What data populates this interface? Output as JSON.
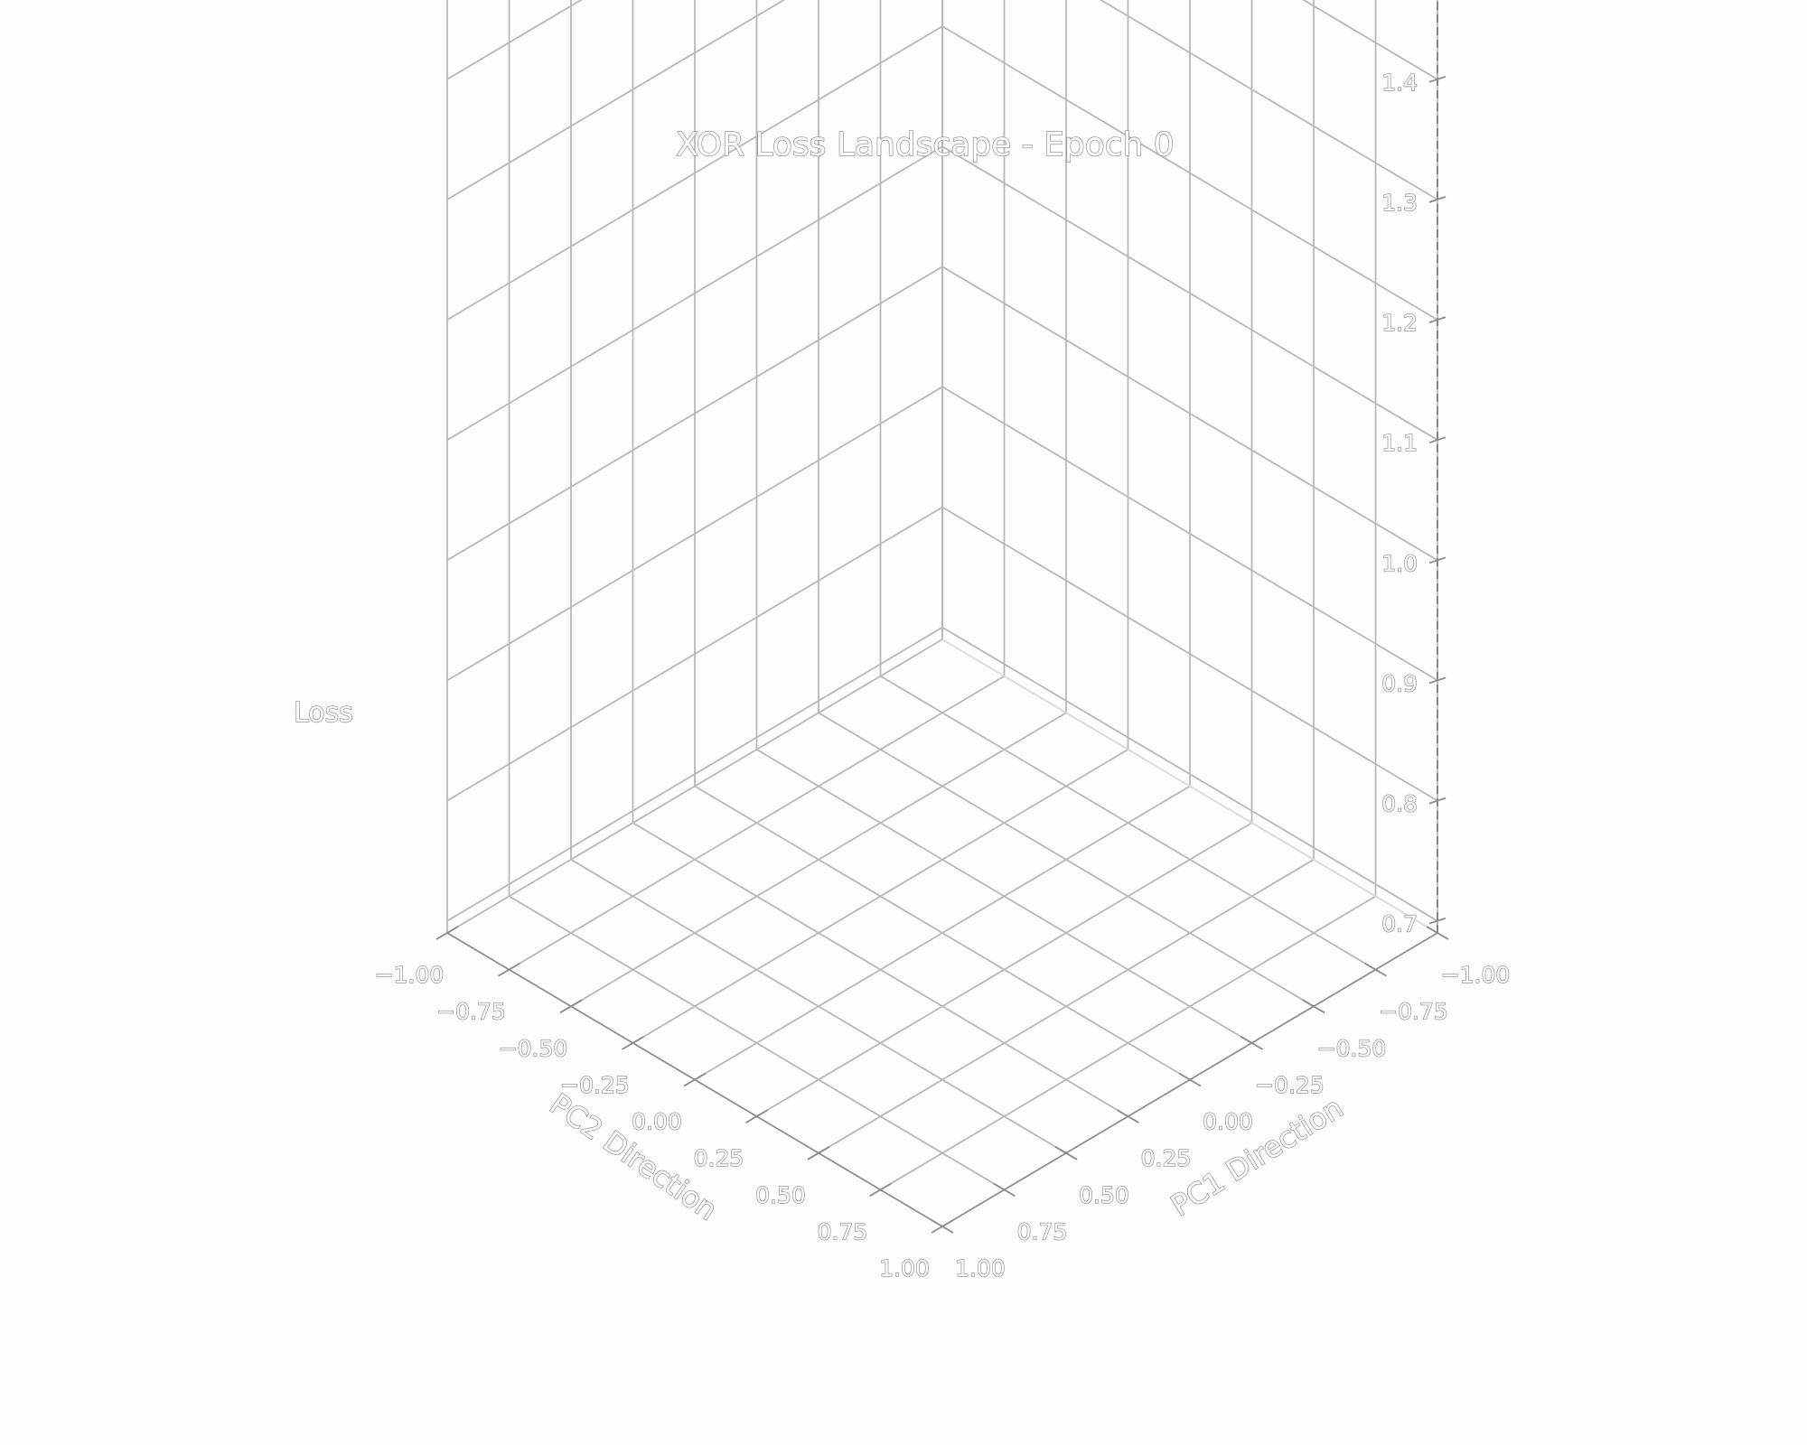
{
  "chart_data": {
    "type": "surface3d",
    "title": "XOR Loss Landscape - Epoch 0",
    "xlabel": "PC1 Direction",
    "ylabel": "PC2 Direction",
    "zlabel": "Loss",
    "x_ticks": [
      "−1.00",
      "−0.75",
      "−0.50",
      "−0.25",
      "0.00",
      "0.25",
      "0.50",
      "0.75",
      "1.00"
    ],
    "y_ticks": [
      "−1.00",
      "−0.75",
      "−0.50",
      "−0.25",
      "0.00",
      "0.25",
      "0.50",
      "0.75",
      "1.00"
    ],
    "z_ticks": [
      "0.7",
      "0.8",
      "0.9",
      "1.0",
      "1.1",
      "1.2",
      "1.3",
      "1.4"
    ],
    "xlim": [
      -1.0,
      1.0
    ],
    "ylim": [
      -1.0,
      1.0
    ],
    "zlim": [
      0.69,
      1.49
    ],
    "grid": true,
    "surface": []
  }
}
